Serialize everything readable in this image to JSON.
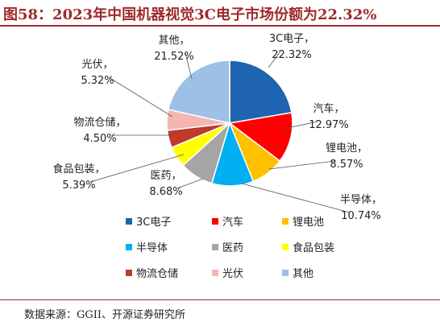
{
  "title": "图58：2023年中国机器视觉3C电子市场份额为22.32%",
  "source": "数据来源：GGII、开源证券研究所",
  "chart_data": {
    "type": "pie",
    "start_angle": "12 o'clock, clockwise",
    "legend_position": "bottom",
    "slices": [
      {
        "name": "3C电子",
        "value": 22.32,
        "label": "22.32%",
        "color": "#1f64b0"
      },
      {
        "name": "汽车",
        "value": 12.97,
        "label": "12.97%",
        "color": "#ff0000"
      },
      {
        "name": "锂电池",
        "value": 8.57,
        "label": "8.57%",
        "color": "#ffc000"
      },
      {
        "name": "半导体",
        "value": 10.74,
        "label": "10.74%",
        "color": "#00b0f0"
      },
      {
        "name": "医药",
        "value": 8.68,
        "label": "8.68%",
        "color": "#a5a5a5"
      },
      {
        "name": "食品包装",
        "value": 5.39,
        "label": "5.39%",
        "color": "#ffff00"
      },
      {
        "name": "物流仓储",
        "value": 4.5,
        "label": "4.50%",
        "color": "#c0392b"
      },
      {
        "name": "光伏",
        "value": 5.32,
        "label": "5.32%",
        "color": "#f4b6b0"
      },
      {
        "name": "其他",
        "value": 21.52,
        "label": "21.52%",
        "color": "#9ebfe6"
      }
    ]
  }
}
